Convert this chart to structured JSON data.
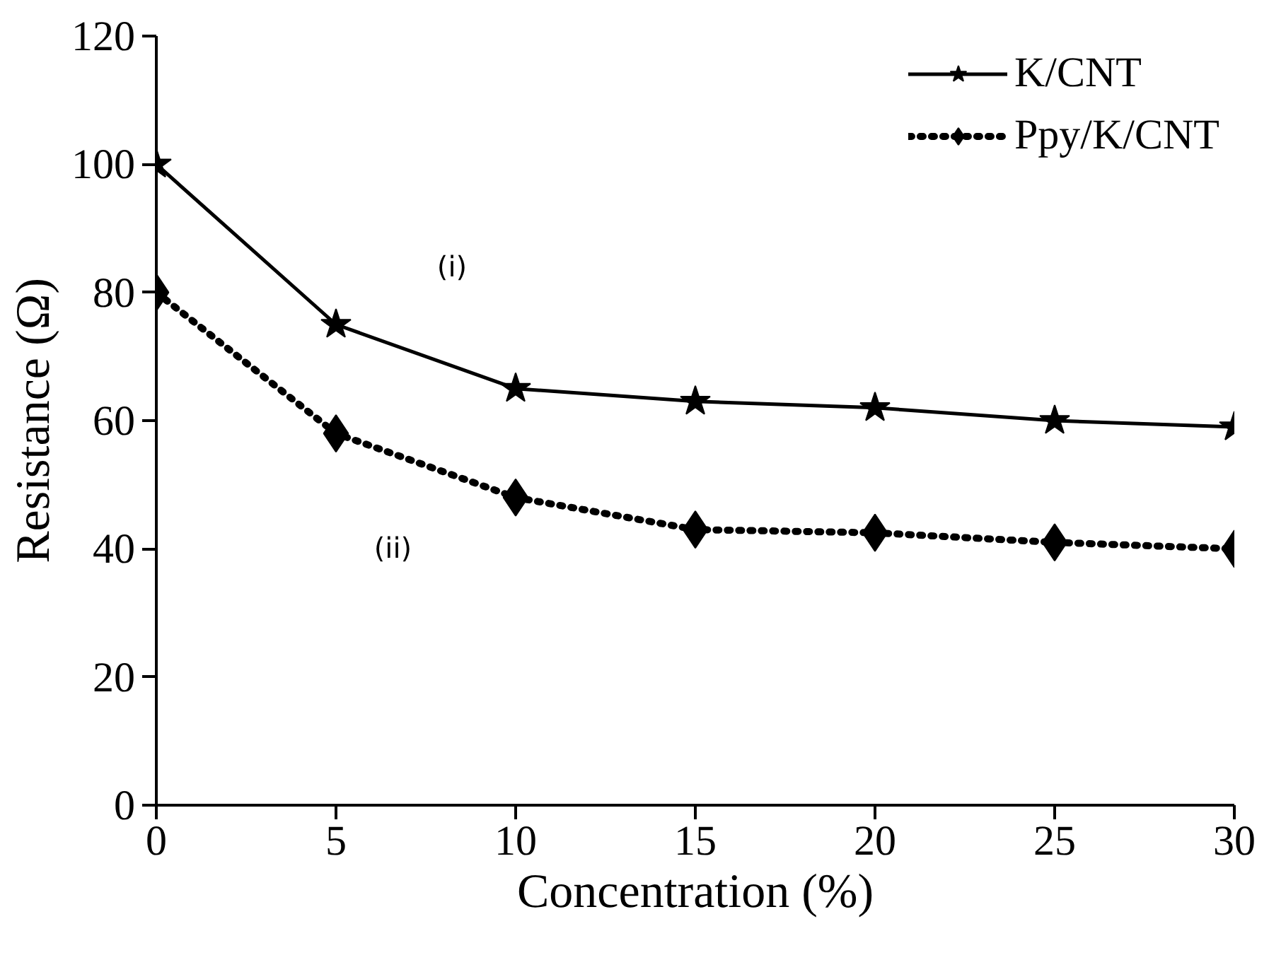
{
  "chart_data": {
    "type": "line",
    "xlabel": "Concentration (%)",
    "ylabel": "Resistance (Ω)",
    "x": [
      0,
      5,
      10,
      15,
      20,
      25,
      30
    ],
    "series": [
      {
        "name": "K/CNT",
        "color": "#000000",
        "marker": "star",
        "line_style": "solid",
        "values": [
          100,
          75,
          65,
          63,
          62,
          60,
          59
        ]
      },
      {
        "name": "Ppy/K/CNT",
        "color": "#000000",
        "marker": "diamond",
        "line_style": "dotted",
        "values": [
          80,
          58,
          48,
          43,
          42.5,
          41,
          40
        ]
      }
    ],
    "xlim": [
      0,
      30
    ],
    "xticks": [
      0,
      5,
      10,
      15,
      20,
      25,
      30
    ],
    "ylim": [
      0,
      120
    ],
    "yticks": [
      0,
      20,
      40,
      60,
      80,
      100,
      120
    ],
    "grid": false,
    "legend": "top right",
    "annotations": [
      "(i)",
      "(ii)"
    ]
  }
}
